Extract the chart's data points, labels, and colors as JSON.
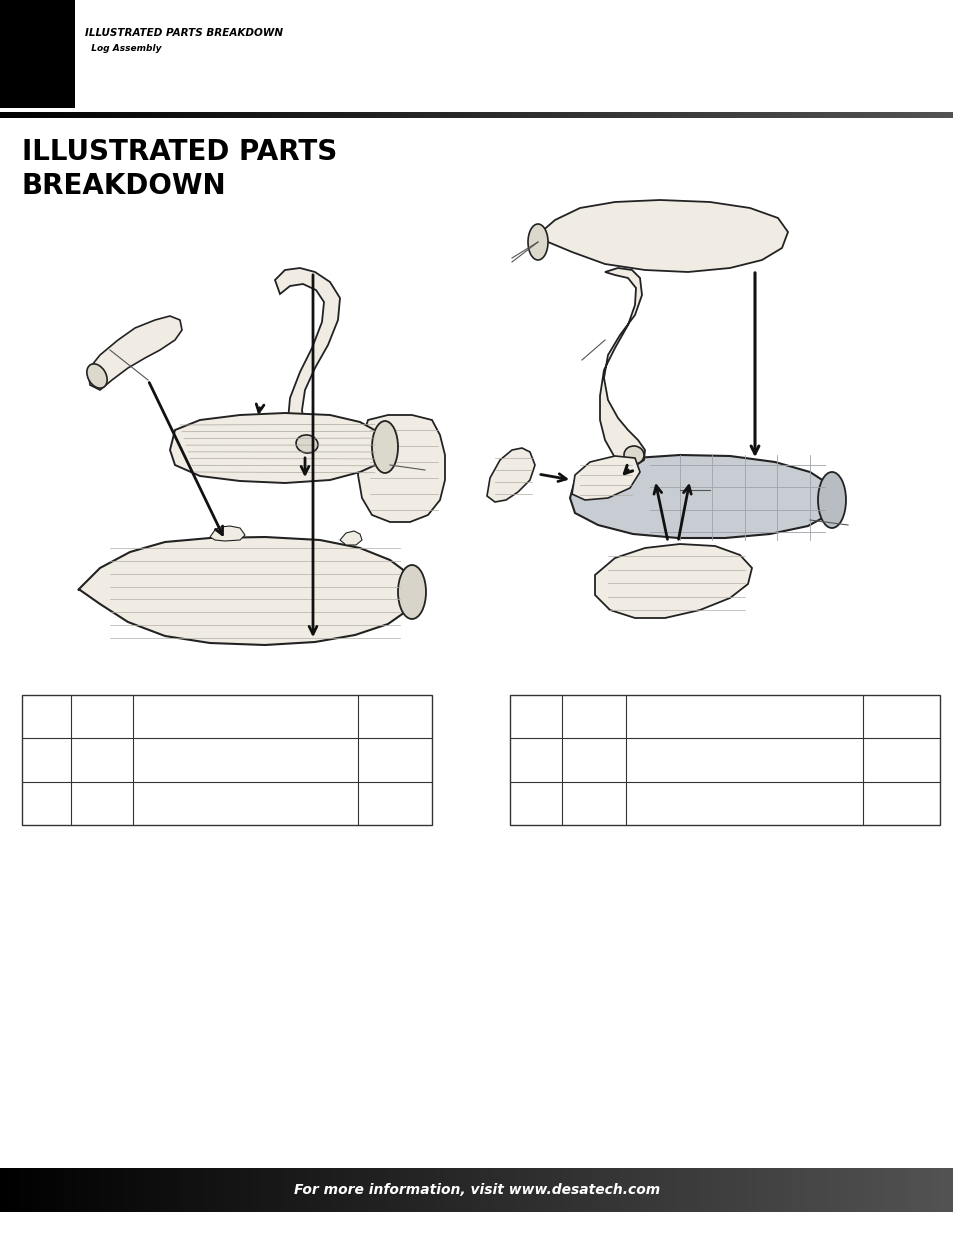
{
  "page_title_main": "ILLUSTRATED PARTS BREAKDOWN",
  "page_subtitle": "Log Assembly",
  "section_title_line1": "ILLUSTRATED PARTS",
  "section_title_line2": "BREAKDOWN",
  "footer_text": "For more information, visit www.desatech.com",
  "bg_color": "#ffffff",
  "header_bar_color": "#000000",
  "footer_text_color": "#ffffff",
  "section_title_color": "#000000",
  "header_title_color": "#000000",
  "header_title_size": 7.5,
  "header_subtitle_size": 6.5,
  "section_title_size": 20,
  "footer_text_size": 10,
  "log_face_color": "#f0ece4",
  "log_edge_color": "#222222",
  "log_gray_color": "#c8cdd4",
  "log_dark_color": "#d4cfc6"
}
